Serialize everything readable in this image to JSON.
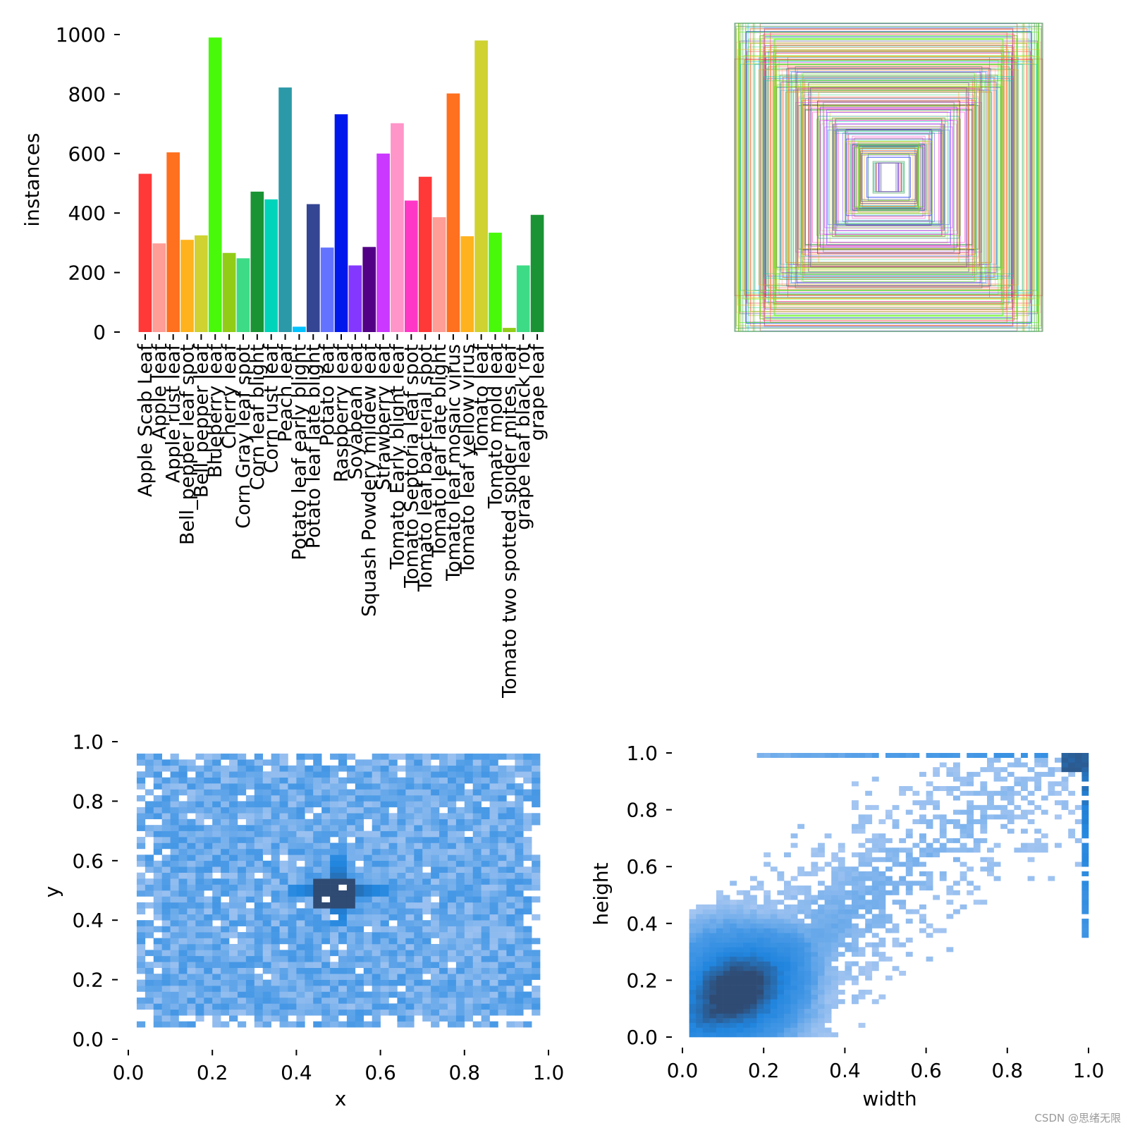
{
  "watermark": "CSDN @思绪无限",
  "colors": {
    "hist_light": "#a9c8f2",
    "hist_mid": "#4a9ae6",
    "hist_strong": "#2185de",
    "hist_dark": "#2f4b73"
  },
  "chart_data": [
    {
      "id": "instances-bar",
      "type": "bar",
      "title": "",
      "xlabel": "",
      "ylabel": "instances",
      "ylim": [
        0,
        1000
      ],
      "yticks": [
        "0",
        "200",
        "400",
        "600",
        "800",
        "1000"
      ],
      "categories": [
        "Apple Scab Leaf",
        "Apple leaf",
        "Apple rust leaf",
        "Bell_pepper leaf spot",
        "Bell_pepper leaf",
        "Blueberry leaf",
        "Cherry leaf",
        "Corn Gray leaf spot",
        "Corn leaf blight",
        "Corn rust leaf",
        "Peach leaf",
        "Potato leaf early blight",
        "Potato leaf late blight",
        "Potato leaf",
        "Raspberry leaf",
        "Soyabean leaf",
        "Squash Powdery mildew leaf",
        "Strawberry leaf",
        "Tomato Early blight leaf",
        "Tomato Septoria leaf spot",
        "Tomato leaf bacterial spot",
        "Tomato leaf late blight",
        "Tomato leaf mosaic virus",
        "Tomato leaf yellow virus",
        "Tomato leaf",
        "Tomato mold leaf",
        "Tomato two spotted spider mites leaf",
        "grape leaf black rot",
        "grape leaf"
      ],
      "values": [
        532,
        298,
        604,
        310,
        325,
        990,
        266,
        248,
        472,
        446,
        822,
        18,
        430,
        284,
        732,
        224,
        286,
        600,
        702,
        442,
        522,
        386,
        802,
        322,
        980,
        334,
        14,
        224,
        394
      ],
      "bar_colors": [
        "#ff3838",
        "#ff9d97",
        "#ff701f",
        "#ffb21d",
        "#cfd231",
        "#48f90a",
        "#92cc17",
        "#3ddb86",
        "#1a9334",
        "#00d4bb",
        "#2c99a8",
        "#00c2ff",
        "#344593",
        "#6473ff",
        "#0018ec",
        "#8438ff",
        "#520085",
        "#cb38ff",
        "#ff95c8",
        "#ff37c7",
        "#ff3838",
        "#ff9d97",
        "#ff701f",
        "#ffb21d",
        "#cfd231",
        "#48f90a",
        "#92cc17",
        "#3ddb86",
        "#1a9334"
      ]
    },
    {
      "id": "anchor-boxes",
      "type": "rectangles",
      "title": "",
      "description_counts": 0
    },
    {
      "id": "xy-hist",
      "type": "heatmap",
      "xlabel": "x",
      "ylabel": "y",
      "xlim": [
        0,
        1
      ],
      "ylim": [
        0,
        1
      ],
      "xticks": [
        "0.0",
        "0.2",
        "0.4",
        "0.6",
        "0.8",
        "1.0"
      ],
      "yticks": [
        "0.0",
        "0.2",
        "0.4",
        "0.6",
        "0.8",
        "1.0"
      ],
      "distribution": "roughly uniform over x in [0.03,0.98], y in [0.05,0.95] with dense cross-shaped peak at (0.5,0.5)",
      "peak": [
        0.5,
        0.5
      ]
    },
    {
      "id": "wh-hist",
      "type": "heatmap",
      "xlabel": "width",
      "ylabel": "height",
      "xlim": [
        0,
        1
      ],
      "ylim": [
        0,
        1
      ],
      "xticks": [
        "0.0",
        "0.2",
        "0.4",
        "0.6",
        "0.8",
        "1.0"
      ],
      "yticks": [
        "0.0",
        "0.2",
        "0.4",
        "0.6",
        "0.8",
        "1.0"
      ],
      "distribution": "concentrated along diagonal, densest near width 0.05-0.25 / height 0.05-0.3, secondary dense cluster at (1.0,1.0)",
      "peak": [
        0.13,
        0.17
      ]
    }
  ]
}
